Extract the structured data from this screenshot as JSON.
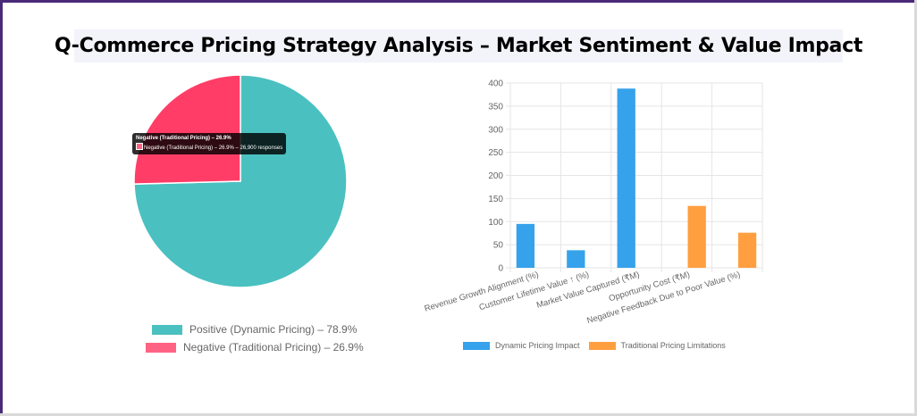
{
  "title": "Q-Commerce Pricing Strategy Analysis – Market Sentiment & Value Impact",
  "pie": {
    "tooltip": {
      "title": "Negative (Traditional Pricing) – 26.9%",
      "body": "Negative (Traditional Pricing) – 26.9% – 26,900 responses"
    },
    "legend": [
      {
        "label": "Positive (Dynamic Pricing) – 78.9%",
        "color": "#4bc0c0"
      },
      {
        "label": "Negative (Traditional Pricing) – 26.9%",
        "color": "#ff6384"
      }
    ]
  },
  "bar": {
    "legend": [
      {
        "label": "Dynamic Pricing Impact",
        "color": "#36a2eb"
      },
      {
        "label": "Traditional Pricing Limitations",
        "color": "#ff9f40"
      }
    ],
    "yticks": [
      "0",
      "50",
      "100",
      "150",
      "200",
      "250",
      "300",
      "350",
      "400"
    ],
    "categories": [
      "Revenue Growth Alignment (%)",
      "Customer Lifetime Value ↑ (%)",
      "Market Value Captured (₹M)",
      "Opportunity Cost (₹M)",
      "Negative Feedback Due to Poor Value (%)"
    ]
  },
  "chart_data": [
    {
      "type": "pie",
      "title": "",
      "labels": [
        "Positive (Dynamic Pricing) – 78.9%",
        "Negative (Traditional Pricing) – 26.9%"
      ],
      "values": [
        78.9,
        26.9
      ],
      "colors": [
        "#4bc0c0",
        "#ff6384"
      ],
      "legend_position": "bottom",
      "tooltip": "Negative (Traditional Pricing) – 26.9% – 26,900 responses"
    },
    {
      "type": "bar",
      "title": "",
      "categories": [
        "Revenue Growth Alignment (%)",
        "Customer Lifetime Value ↑ (%)",
        "Market Value Captured (₹M)",
        "Opportunity Cost (₹M)",
        "Negative Feedback Due to Poor Value (%)"
      ],
      "series": [
        {
          "name": "Dynamic Pricing Impact",
          "color": "#36a2eb",
          "values": [
            95,
            38,
            388,
            null,
            null
          ]
        },
        {
          "name": "Traditional Pricing Limitations",
          "color": "#ff9f40",
          "values": [
            null,
            null,
            null,
            134,
            76
          ]
        }
      ],
      "xlabel": "",
      "ylabel": "",
      "ylim": [
        0,
        400
      ],
      "yticks": [
        0,
        50,
        100,
        150,
        200,
        250,
        300,
        350,
        400
      ],
      "grid": true,
      "legend_position": "bottom"
    }
  ]
}
